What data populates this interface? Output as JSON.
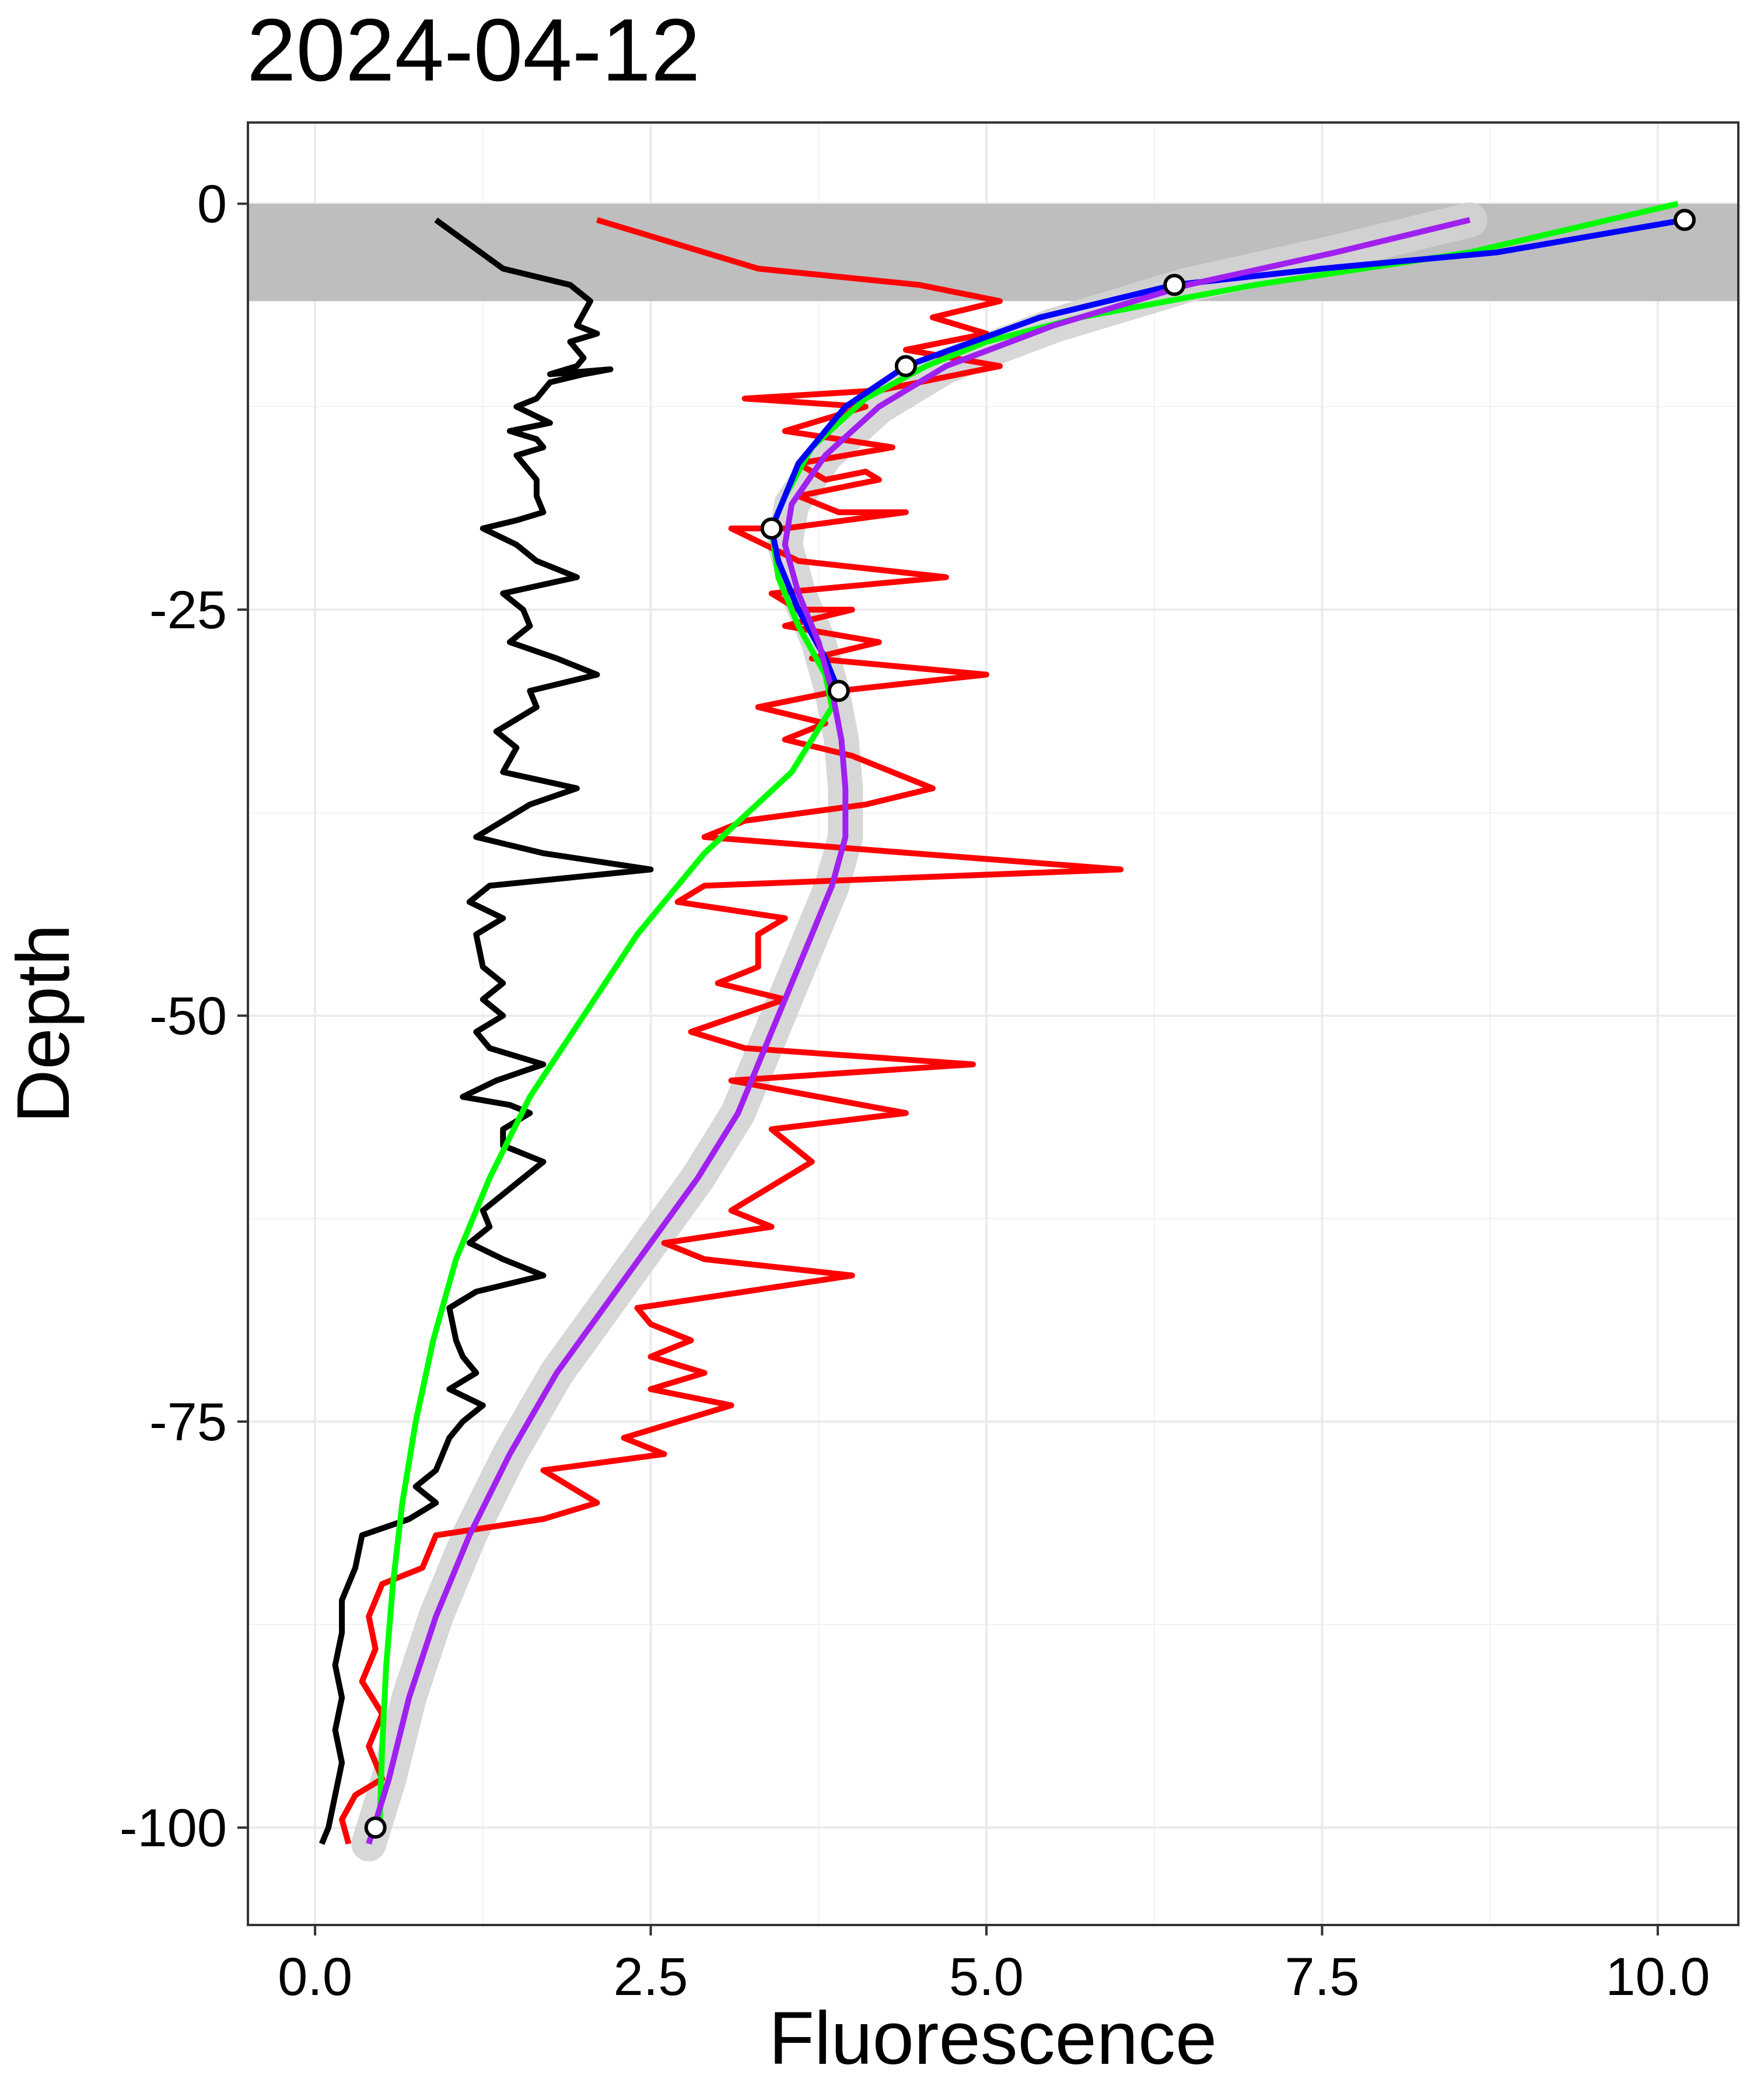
{
  "chart_data": {
    "type": "line",
    "title": "2024-04-12",
    "xlabel": "Fluorescence",
    "ylabel": "Depth",
    "xlim": [
      -0.5,
      10.6
    ],
    "ylim": [
      -106,
      5
    ],
    "x_ticks": [
      0.0,
      2.5,
      5.0,
      7.5,
      10.0
    ],
    "x_tick_labels": [
      "0.0",
      "2.5",
      "5.0",
      "7.5",
      "10.0"
    ],
    "y_ticks": [
      0,
      -25,
      -50,
      -75,
      -100
    ],
    "y_tick_labels": [
      "0",
      "-25",
      "-50",
      "-75",
      "-100"
    ],
    "grid": true,
    "legend": "none",
    "shaded_band": {
      "y_top": 0,
      "y_bottom": -6,
      "color": "#bebebe"
    },
    "confidence_ribbon_color": "#d3d3d3",
    "series": [
      {
        "color": "#000000",
        "points": [
          [
            0.9,
            -1
          ],
          [
            1.4,
            -4
          ],
          [
            1.65,
            -4.5
          ],
          [
            1.9,
            -5
          ],
          [
            2.05,
            -6
          ],
          [
            1.95,
            -7.5
          ],
          [
            2.1,
            -8
          ],
          [
            1.9,
            -8.5
          ],
          [
            2.0,
            -9.5
          ],
          [
            1.95,
            -10
          ],
          [
            1.75,
            -10.5
          ],
          [
            2.2,
            -10.2
          ],
          [
            2.0,
            -10.5
          ],
          [
            1.75,
            -11
          ],
          [
            1.65,
            -12
          ],
          [
            1.5,
            -12.5
          ],
          [
            1.75,
            -13.5
          ],
          [
            1.45,
            -14
          ],
          [
            1.65,
            -14.5
          ],
          [
            1.7,
            -15
          ],
          [
            1.5,
            -15.5
          ],
          [
            1.6,
            -16.5
          ],
          [
            1.65,
            -17
          ],
          [
            1.65,
            -17.5
          ],
          [
            1.65,
            -18
          ],
          [
            1.7,
            -19
          ],
          [
            1.5,
            -19.5
          ],
          [
            1.25,
            -20
          ],
          [
            1.5,
            -21
          ],
          [
            1.65,
            -22
          ],
          [
            1.8,
            -22.5
          ],
          [
            1.95,
            -23
          ],
          [
            1.4,
            -24
          ],
          [
            1.55,
            -25
          ],
          [
            1.6,
            -26
          ],
          [
            1.45,
            -27
          ],
          [
            1.8,
            -28
          ],
          [
            2.1,
            -29
          ],
          [
            1.6,
            -30
          ],
          [
            1.65,
            -31
          ],
          [
            1.35,
            -32.5
          ],
          [
            1.5,
            -33.5
          ],
          [
            1.4,
            -35
          ],
          [
            1.95,
            -36
          ],
          [
            1.6,
            -37
          ],
          [
            1.2,
            -39
          ],
          [
            1.45,
            -39.5
          ],
          [
            1.7,
            -40
          ],
          [
            2.5,
            -41
          ],
          [
            1.3,
            -42
          ],
          [
            1.15,
            -43
          ],
          [
            1.4,
            -44
          ],
          [
            1.2,
            -45
          ],
          [
            1.25,
            -47
          ],
          [
            1.4,
            -48
          ],
          [
            1.25,
            -49
          ],
          [
            1.4,
            -50
          ],
          [
            1.2,
            -51
          ],
          [
            1.3,
            -52
          ],
          [
            1.7,
            -53
          ],
          [
            1.35,
            -54
          ],
          [
            1.1,
            -55
          ],
          [
            1.45,
            -55.5
          ],
          [
            1.6,
            -56
          ],
          [
            1.4,
            -57
          ],
          [
            1.4,
            -58
          ],
          [
            1.7,
            -59
          ],
          [
            1.25,
            -62
          ],
          [
            1.3,
            -63
          ],
          [
            1.15,
            -64
          ],
          [
            1.4,
            -65
          ],
          [
            1.7,
            -66
          ],
          [
            1.2,
            -67
          ],
          [
            1.0,
            -68
          ],
          [
            1.05,
            -70
          ],
          [
            1.1,
            -71
          ],
          [
            1.2,
            -72
          ],
          [
            1.0,
            -73
          ],
          [
            1.25,
            -74
          ],
          [
            1.1,
            -75
          ],
          [
            1.0,
            -76
          ],
          [
            0.9,
            -78
          ],
          [
            0.75,
            -79
          ],
          [
            0.9,
            -80
          ],
          [
            0.7,
            -81
          ],
          [
            0.35,
            -82
          ],
          [
            0.3,
            -84
          ],
          [
            0.2,
            -86
          ],
          [
            0.2,
            -88
          ],
          [
            0.15,
            -90
          ],
          [
            0.2,
            -92
          ],
          [
            0.15,
            -94
          ],
          [
            0.2,
            -96
          ],
          [
            0.15,
            -98
          ],
          [
            0.1,
            -100
          ],
          [
            0.05,
            -101
          ]
        ]
      },
      {
        "color": "#ff0000",
        "points": [
          [
            2.1,
            -1
          ],
          [
            3.3,
            -4
          ],
          [
            4.5,
            -5
          ],
          [
            5.1,
            -6
          ],
          [
            4.6,
            -7
          ],
          [
            5.0,
            -8
          ],
          [
            4.4,
            -9
          ],
          [
            5.1,
            -10
          ],
          [
            4.5,
            -11
          ],
          [
            4.2,
            -11.5
          ],
          [
            3.2,
            -12
          ],
          [
            4.1,
            -12.5
          ],
          [
            3.5,
            -14
          ],
          [
            4.3,
            -15
          ],
          [
            3.6,
            -16
          ],
          [
            3.8,
            -17
          ],
          [
            4.1,
            -16.5
          ],
          [
            4.2,
            -17
          ],
          [
            3.6,
            -18
          ],
          [
            3.9,
            -19
          ],
          [
            4.4,
            -19
          ],
          [
            3.5,
            -20
          ],
          [
            3.1,
            -20
          ],
          [
            3.6,
            -22
          ],
          [
            4.7,
            -23
          ],
          [
            3.4,
            -24
          ],
          [
            3.6,
            -25
          ],
          [
            4.0,
            -25
          ],
          [
            3.5,
            -26
          ],
          [
            4.2,
            -27
          ],
          [
            3.7,
            -28
          ],
          [
            5.0,
            -29
          ],
          [
            3.9,
            -30
          ],
          [
            3.3,
            -31
          ],
          [
            3.8,
            -32
          ],
          [
            3.5,
            -33
          ],
          [
            4.0,
            -34
          ],
          [
            4.6,
            -36
          ],
          [
            4.1,
            -37
          ],
          [
            3.2,
            -38
          ],
          [
            2.9,
            -39
          ],
          [
            6.0,
            -41
          ],
          [
            2.9,
            -42
          ],
          [
            2.7,
            -43
          ],
          [
            3.5,
            -44
          ],
          [
            3.3,
            -45
          ],
          [
            3.3,
            -47
          ],
          [
            3.0,
            -48
          ],
          [
            3.5,
            -49
          ],
          [
            2.8,
            -51
          ],
          [
            3.2,
            -52
          ],
          [
            4.9,
            -53
          ],
          [
            3.1,
            -54
          ],
          [
            4.4,
            -56
          ],
          [
            3.4,
            -57
          ],
          [
            3.7,
            -59
          ],
          [
            3.5,
            -60
          ],
          [
            3.1,
            -62
          ],
          [
            3.4,
            -63
          ],
          [
            2.6,
            -64
          ],
          [
            2.9,
            -65
          ],
          [
            4.0,
            -66
          ],
          [
            2.4,
            -68
          ],
          [
            2.5,
            -69
          ],
          [
            2.8,
            -70
          ],
          [
            2.5,
            -71
          ],
          [
            2.9,
            -72
          ],
          [
            2.5,
            -73
          ],
          [
            3.1,
            -74
          ],
          [
            2.3,
            -76
          ],
          [
            2.6,
            -77
          ],
          [
            1.7,
            -78
          ],
          [
            2.1,
            -80
          ],
          [
            1.7,
            -81
          ],
          [
            0.9,
            -82
          ],
          [
            0.8,
            -84
          ],
          [
            0.5,
            -85
          ],
          [
            0.4,
            -87
          ],
          [
            0.45,
            -89
          ],
          [
            0.35,
            -91
          ],
          [
            0.5,
            -93
          ],
          [
            0.4,
            -95
          ],
          [
            0.5,
            -97
          ],
          [
            0.3,
            -98
          ],
          [
            0.2,
            -99.5
          ],
          [
            0.25,
            -101
          ]
        ]
      },
      {
        "color": "#00ff00",
        "points": [
          [
            10.15,
            0
          ],
          [
            8.6,
            -3
          ],
          [
            7.0,
            -5
          ],
          [
            5.7,
            -7
          ],
          [
            5.0,
            -8.5
          ],
          [
            4.55,
            -10
          ],
          [
            4.1,
            -12
          ],
          [
            3.7,
            -15
          ],
          [
            3.5,
            -18
          ],
          [
            3.4,
            -20
          ],
          [
            3.45,
            -23
          ],
          [
            3.6,
            -26
          ],
          [
            3.8,
            -29
          ],
          [
            3.85,
            -31
          ],
          [
            3.55,
            -35
          ],
          [
            2.9,
            -40
          ],
          [
            2.4,
            -45
          ],
          [
            2.0,
            -50
          ],
          [
            1.6,
            -55
          ],
          [
            1.3,
            -60
          ],
          [
            1.05,
            -65
          ],
          [
            0.88,
            -70
          ],
          [
            0.75,
            -75
          ],
          [
            0.65,
            -80
          ],
          [
            0.58,
            -85
          ],
          [
            0.53,
            -90
          ],
          [
            0.5,
            -95
          ],
          [
            0.48,
            -100
          ]
        ]
      },
      {
        "color": "#0000ff",
        "points": [
          [
            10.2,
            -1
          ],
          [
            8.8,
            -3
          ],
          [
            7.5,
            -4
          ],
          [
            6.4,
            -5
          ],
          [
            5.4,
            -7
          ],
          [
            4.9,
            -8.5
          ],
          [
            4.4,
            -10
          ],
          [
            3.95,
            -12.5
          ],
          [
            3.6,
            -16
          ],
          [
            3.45,
            -19
          ],
          [
            3.4,
            -20
          ],
          [
            3.45,
            -22
          ],
          [
            3.6,
            -25
          ],
          [
            3.8,
            -28
          ],
          [
            3.9,
            -30
          ]
        ]
      },
      {
        "color": "#a020f0",
        "points": [
          [
            8.6,
            -1
          ],
          [
            7.6,
            -3
          ],
          [
            6.5,
            -5
          ],
          [
            5.5,
            -7.5
          ],
          [
            4.7,
            -10
          ],
          [
            4.2,
            -12.5
          ],
          [
            3.8,
            -15.5
          ],
          [
            3.55,
            -18.5
          ],
          [
            3.5,
            -21
          ],
          [
            3.6,
            -24
          ],
          [
            3.75,
            -27
          ],
          [
            3.85,
            -30
          ],
          [
            3.92,
            -33
          ],
          [
            3.95,
            -36
          ],
          [
            3.95,
            -39
          ],
          [
            3.85,
            -42
          ],
          [
            3.7,
            -45
          ],
          [
            3.55,
            -48
          ],
          [
            3.35,
            -52
          ],
          [
            3.15,
            -56
          ],
          [
            2.85,
            -60
          ],
          [
            2.5,
            -64
          ],
          [
            2.15,
            -68
          ],
          [
            1.8,
            -72
          ],
          [
            1.45,
            -77
          ],
          [
            1.15,
            -82
          ],
          [
            0.9,
            -87
          ],
          [
            0.7,
            -92
          ],
          [
            0.55,
            -97
          ],
          [
            0.4,
            -101
          ]
        ]
      }
    ],
    "markers": [
      [
        10.2,
        -1
      ],
      [
        6.4,
        -5
      ],
      [
        4.4,
        -10
      ],
      [
        3.4,
        -20
      ],
      [
        3.9,
        -30
      ],
      [
        0.45,
        -100
      ]
    ]
  }
}
